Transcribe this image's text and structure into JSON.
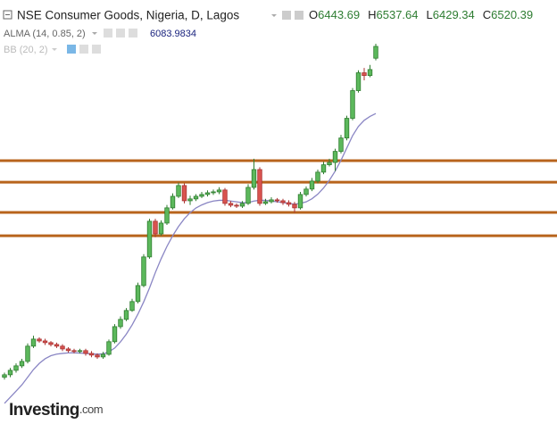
{
  "chart_data": {
    "type": "candlestick",
    "title": "NSE Consumer Goods, Nigeria, D, Lagos",
    "ohlc_labels": [
      "O",
      "H",
      "L",
      "C"
    ],
    "ylim": [
      4014,
      6822
    ],
    "up_color": "#5cb85c",
    "down_color": "#d9534f",
    "open": [
      4370,
      4386,
      4415,
      4444,
      4473,
      4572,
      4618,
      4606,
      4595,
      4583,
      4572,
      4554,
      4543,
      4537,
      4543,
      4525,
      4514,
      4502,
      4519,
      4601,
      4699,
      4746,
      4804,
      4862,
      4966,
      5152,
      5384,
      5302,
      5372,
      5471,
      5546,
      5616,
      5517,
      5529,
      5546,
      5558,
      5569,
      5575,
      5587,
      5500,
      5488,
      5482,
      5500,
      5604,
      5720,
      5500,
      5511,
      5523,
      5517,
      5505,
      5494,
      5471,
      5558,
      5593,
      5645,
      5703,
      5751,
      5766,
      5838,
      5925,
      6053,
      6233,
      6349,
      6331,
      6443.69
    ],
    "high": [
      4400,
      4430,
      4460,
      4490,
      4590,
      4640,
      4630,
      4620,
      4605,
      4595,
      4585,
      4565,
      4555,
      4555,
      4555,
      4540,
      4525,
      4535,
      4615,
      4715,
      4765,
      4820,
      4880,
      4985,
      5170,
      5400,
      5400,
      5390,
      5490,
      5565,
      5635,
      5630,
      5550,
      5560,
      5575,
      5585,
      5590,
      5605,
      5600,
      5515,
      5500,
      5515,
      5625,
      5790,
      5735,
      5530,
      5540,
      5535,
      5530,
      5520,
      5510,
      5575,
      5610,
      5665,
      5720,
      5770,
      5790,
      5855,
      5945,
      6070,
      6250,
      6365,
      6380,
      6400,
      6537.64
    ],
    "low": [
      4355,
      4370,
      4400,
      4430,
      4460,
      4560,
      4595,
      4580,
      4570,
      4560,
      4540,
      4530,
      4525,
      4525,
      4510,
      4500,
      4490,
      4490,
      4510,
      4590,
      4685,
      4735,
      4795,
      4850,
      4955,
      5140,
      5280,
      5290,
      5360,
      5460,
      5535,
      5500,
      5490,
      5515,
      5535,
      5545,
      5555,
      5560,
      5485,
      5475,
      5470,
      5470,
      5490,
      5590,
      5485,
      5490,
      5500,
      5505,
      5490,
      5480,
      5440,
      5460,
      5545,
      5580,
      5630,
      5690,
      5740,
      5710,
      5825,
      5910,
      6040,
      6220,
      6300,
      6320,
      6429.34
    ],
    "close": [
      4386,
      4415,
      4444,
      4473,
      4572,
      4618,
      4606,
      4595,
      4583,
      4572,
      4554,
      4543,
      4537,
      4543,
      4525,
      4514,
      4502,
      4519,
      4601,
      4699,
      4746,
      4804,
      4862,
      4966,
      5152,
      5384,
      5302,
      5372,
      5471,
      5546,
      5616,
      5517,
      5529,
      5546,
      5558,
      5569,
      5575,
      5587,
      5500,
      5488,
      5482,
      5500,
      5604,
      5720,
      5500,
      5511,
      5523,
      5517,
      5505,
      5494,
      5471,
      5558,
      5593,
      5645,
      5703,
      5751,
      5766,
      5838,
      5925,
      6053,
      6233,
      6349,
      6331,
      6370,
      6520.39
    ],
    "indicators": [
      {
        "name": "ALMA (14, 0.85, 2)",
        "color": "#8a86c4",
        "values": [
          4200,
          4240,
          4280,
          4320,
          4370,
          4420,
          4460,
          4490,
          4510,
          4520,
          4525,
          4528,
          4528,
          4527,
          4525,
          4522,
          4520,
          4522,
          4535,
          4560,
          4600,
          4650,
          4710,
          4780,
          4860,
          4950,
          5050,
          5140,
          5220,
          5290,
          5350,
          5400,
          5440,
          5470,
          5490,
          5505,
          5515,
          5520,
          5520,
          5515,
          5510,
          5505,
          5505,
          5515,
          5520,
          5520,
          5515,
          5510,
          5505,
          5500,
          5495,
          5500,
          5510,
          5530,
          5560,
          5600,
          5650,
          5710,
          5780,
          5860,
          5940,
          6000,
          6040,
          6065,
          6083.9834
        ]
      },
      {
        "name": "BB (20, 2)"
      }
    ],
    "levels": {
      "color": "#b8641c",
      "values": [
        5778,
        5638,
        5441,
        5290
      ]
    }
  },
  "brand": {
    "name": "Investing",
    "suffix": ".com"
  }
}
